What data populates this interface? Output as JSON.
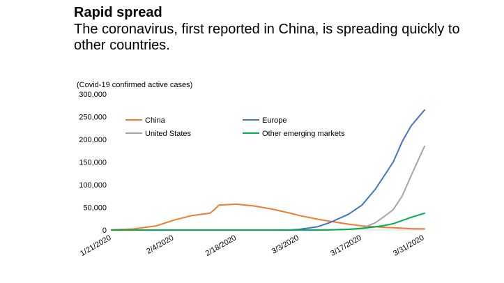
{
  "chart_data": {
    "type": "line",
    "title": "Rapid spread",
    "subtitle": "The coronavirus, first reported in China, is spreading quickly to other countries.",
    "ylabel": "(Covid-19 confirmed active cases)",
    "xlabel": "",
    "ylim": [
      0,
      300000
    ],
    "yticks": [
      "0",
      "50,000",
      "100,000",
      "150,000",
      "200,000",
      "250,000",
      "300,000"
    ],
    "xticks": [
      "1/21/2020",
      "2/4/2020",
      "2/18/2020",
      "3/3/2020",
      "3/17/2020",
      "3/31/2020"
    ],
    "grid": false,
    "legend": "top-left",
    "x": [
      "1/21/2020",
      "1/26/2020",
      "1/31/2020",
      "2/4/2020",
      "2/8/2020",
      "2/12/2020",
      "2/13/2020",
      "2/14/2020",
      "2/18/2020",
      "2/22/2020",
      "2/26/2020",
      "3/1/2020",
      "3/3/2020",
      "3/7/2020",
      "3/10/2020",
      "3/14/2020",
      "3/17/2020",
      "3/20/2020",
      "3/22/2020",
      "3/24/2020",
      "3/26/2020",
      "3/28/2020",
      "3/31/2020"
    ],
    "series": [
      {
        "name": "China",
        "color": "#ED7D31",
        "values": [
          300,
          2500,
          9000,
          22000,
          32000,
          37000,
          45000,
          55000,
          57000,
          53000,
          46000,
          37000,
          32000,
          24000,
          19000,
          13000,
          9000,
          7000,
          6000,
          5000,
          4000,
          3000,
          2500
        ]
      },
      {
        "name": "Europe",
        "color": "#4472C4",
        "values": [
          0,
          0,
          0,
          0,
          0,
          0,
          0,
          0,
          0,
          0,
          0,
          500,
          1500,
          7000,
          17000,
          35000,
          55000,
          90000,
          120000,
          150000,
          195000,
          230000,
          265000
        ]
      },
      {
        "name": "United States",
        "color": "#A5A5A5",
        "values": [
          0,
          0,
          0,
          0,
          0,
          0,
          0,
          0,
          0,
          0,
          0,
          0,
          0,
          100,
          300,
          1500,
          4000,
          16000,
          30000,
          45000,
          75000,
          120000,
          185000
        ]
      },
      {
        "name": "Other emerging markets",
        "color": "#00B050",
        "values": [
          0,
          0,
          0,
          0,
          0,
          0,
          0,
          0,
          0,
          0,
          0,
          0,
          0,
          200,
          500,
          1500,
          3500,
          7000,
          10000,
          14000,
          21000,
          28000,
          37000
        ]
      }
    ]
  }
}
